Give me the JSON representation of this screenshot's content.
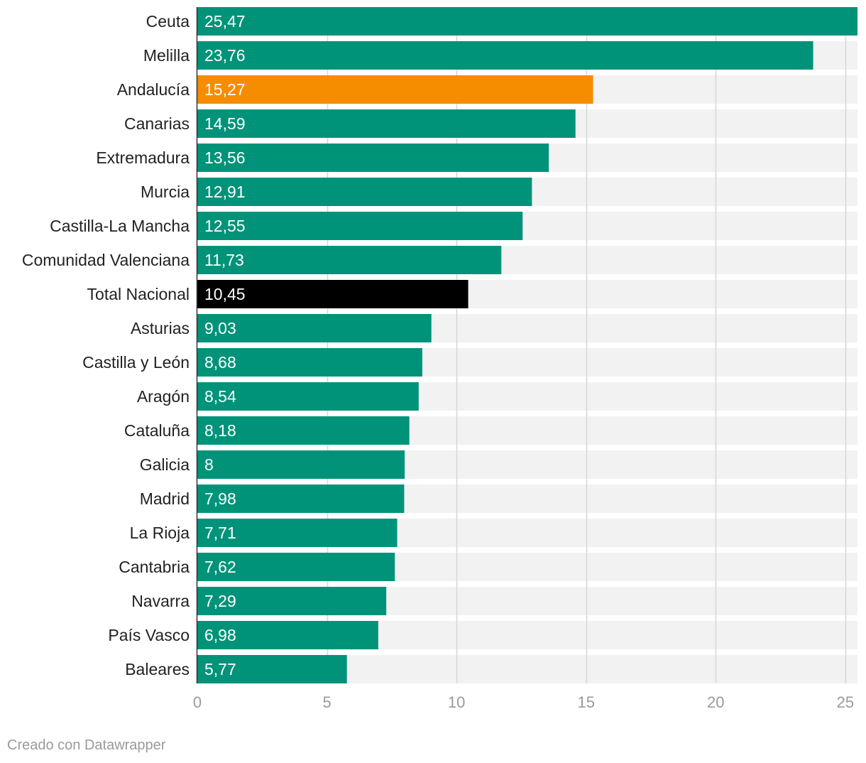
{
  "chart_data": {
    "type": "bar",
    "orientation": "horizontal",
    "title": "",
    "xlabel": "",
    "ylabel": "",
    "xlim": [
      0,
      25.47
    ],
    "xticks": [
      0,
      5,
      10,
      15,
      20,
      25
    ],
    "xtick_labels": [
      "0",
      "5",
      "10",
      "15",
      "20",
      "25"
    ],
    "categories": [
      "Ceuta",
      "Melilla",
      "Andalucía",
      "Canarias",
      "Extremadura",
      "Murcia",
      "Castilla-La Mancha",
      "Comunidad Valenciana",
      "Total Nacional",
      "Asturias",
      "Castilla y León",
      "Aragón",
      "Cataluña",
      "Galicia",
      "Madrid",
      "La Rioja",
      "Cantabria",
      "Navarra",
      "País Vasco",
      "Baleares"
    ],
    "values": [
      25.47,
      23.76,
      15.27,
      14.59,
      13.56,
      12.91,
      12.55,
      11.73,
      10.45,
      9.03,
      8.68,
      8.54,
      8.18,
      8,
      7.98,
      7.71,
      7.62,
      7.29,
      6.98,
      5.77
    ],
    "value_labels": [
      "25,47",
      "23,76",
      "15,27",
      "14,59",
      "13,56",
      "12,91",
      "12,55",
      "11,73",
      "10,45",
      "9,03",
      "8,68",
      "8,54",
      "8,18",
      "8",
      "7,98",
      "7,71",
      "7,62",
      "7,29",
      "6,98",
      "5,77"
    ],
    "colors": {
      "default": "#009379",
      "highlights": {
        "Andalucía": "#f68c00",
        "Total Nacional": "#000000"
      },
      "track": "#f2f2f2",
      "grid": "#d6d6d6",
      "axis": "#333333"
    },
    "grid": true
  },
  "footer": {
    "credit": "Creado con Datawrapper"
  }
}
